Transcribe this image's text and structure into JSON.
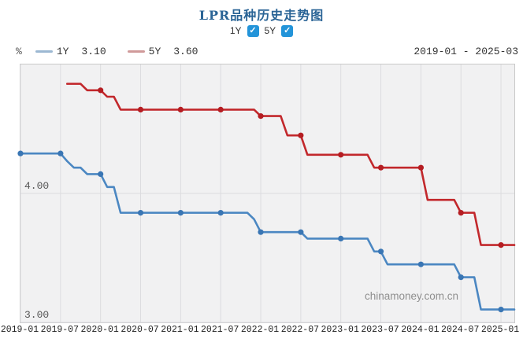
{
  "title": "LPR品种历史走势图",
  "controls": {
    "items": [
      {
        "label": "1Y",
        "checked": true,
        "check_glyph": "✓"
      },
      {
        "label": "5Y",
        "checked": true,
        "check_glyph": "✓"
      }
    ]
  },
  "legend": {
    "unit": "%",
    "items": [
      {
        "label": "1Y",
        "value": "3.10",
        "swatch_color": "#9cb8d2"
      },
      {
        "label": "5Y",
        "value": "3.60",
        "swatch_color": "#d09a9a"
      }
    ],
    "date_range": "2019-01 - 2025-03"
  },
  "watermark": "chinamoney.com.cn",
  "colors": {
    "title": "#2a6496",
    "checkbox": "#2394d9",
    "plot_bg": "#f1f1f2",
    "grid": "#dcdcdf",
    "border": "#c9c9c9"
  },
  "chart_data": {
    "type": "line",
    "title": "LPR品种历史走势图",
    "x_start": "2019-01",
    "x_end": "2025-03",
    "months_total": 75,
    "x_tick_every_months": 6,
    "x_tick_labels": [
      "2019-01",
      "2019-07",
      "2020-01",
      "2020-07",
      "2021-01",
      "2021-07",
      "2022-01",
      "2022-07",
      "2023-01",
      "2023-07",
      "2024-01",
      "2024-07",
      "2025-01"
    ],
    "y_ticks": [
      {
        "label": "3.00",
        "value": 3.0
      },
      {
        "label": "4.00",
        "value": 4.0
      }
    ],
    "ylim": [
      3.0,
      5.0
    ],
    "grid": true,
    "legend_position": "top-left",
    "series": [
      {
        "name": "1Y",
        "color": "#4b87c2",
        "marker_color": "#3a76b4",
        "start_month": 0,
        "values": [
          4.31,
          4.31,
          4.31,
          4.31,
          4.31,
          4.31,
          4.31,
          4.25,
          4.2,
          4.2,
          4.15,
          4.15,
          4.15,
          4.05,
          4.05,
          3.85,
          3.85,
          3.85,
          3.85,
          3.85,
          3.85,
          3.85,
          3.85,
          3.85,
          3.85,
          3.85,
          3.85,
          3.85,
          3.85,
          3.85,
          3.85,
          3.85,
          3.85,
          3.85,
          3.85,
          3.8,
          3.7,
          3.7,
          3.7,
          3.7,
          3.7,
          3.7,
          3.7,
          3.65,
          3.65,
          3.65,
          3.65,
          3.65,
          3.65,
          3.65,
          3.65,
          3.65,
          3.65,
          3.55,
          3.55,
          3.45,
          3.45,
          3.45,
          3.45,
          3.45,
          3.45,
          3.45,
          3.45,
          3.45,
          3.45,
          3.45,
          3.35,
          3.35,
          3.35,
          3.1,
          3.1,
          3.1,
          3.1,
          3.1,
          3.1
        ]
      },
      {
        "name": "5Y",
        "color": "#c2282c",
        "marker_color": "#b51d22",
        "start_month": 7,
        "values": [
          4.85,
          4.85,
          4.85,
          4.8,
          4.8,
          4.8,
          4.75,
          4.75,
          4.65,
          4.65,
          4.65,
          4.65,
          4.65,
          4.65,
          4.65,
          4.65,
          4.65,
          4.65,
          4.65,
          4.65,
          4.65,
          4.65,
          4.65,
          4.65,
          4.65,
          4.65,
          4.65,
          4.65,
          4.65,
          4.6,
          4.6,
          4.6,
          4.6,
          4.45,
          4.45,
          4.45,
          4.3,
          4.3,
          4.3,
          4.3,
          4.3,
          4.3,
          4.3,
          4.3,
          4.3,
          4.3,
          4.2,
          4.2,
          4.2,
          4.2,
          4.2,
          4.2,
          4.2,
          4.2,
          3.95,
          3.95,
          3.95,
          3.95,
          3.95,
          3.85,
          3.85,
          3.85,
          3.6,
          3.6,
          3.6,
          3.6,
          3.6,
          3.6
        ]
      }
    ]
  }
}
